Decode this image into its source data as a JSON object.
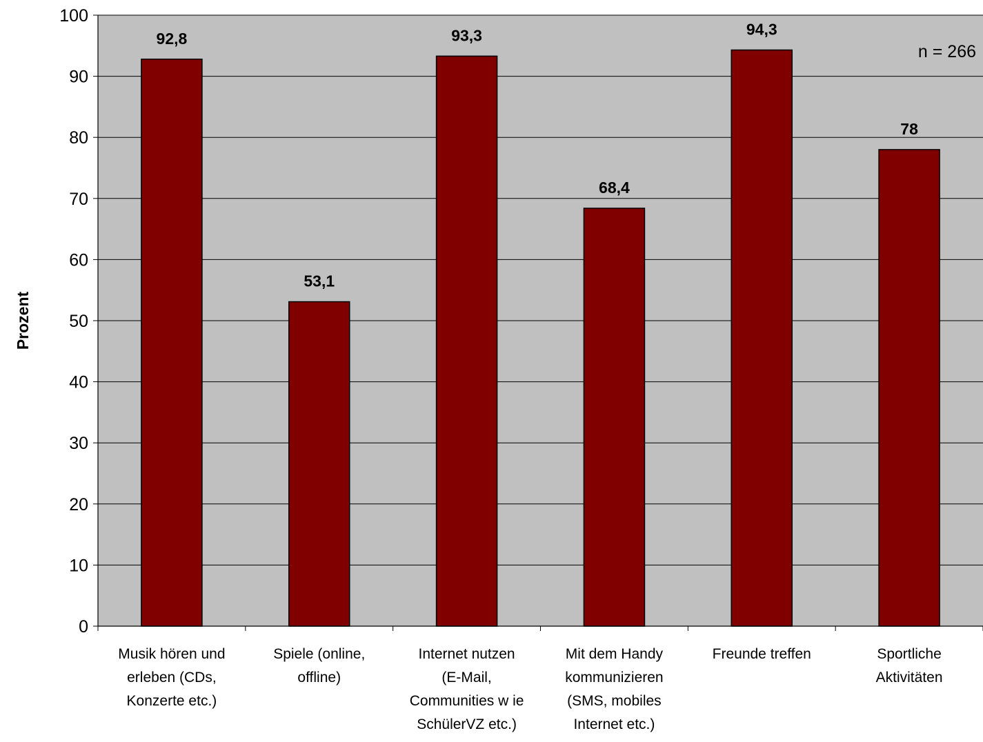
{
  "chart_data": {
    "type": "bar",
    "categories": [
      [
        "Musik hören und",
        "erleben (CDs,",
        "Konzerte etc.)"
      ],
      [
        "Spiele (online,",
        "offline)"
      ],
      [
        "Internet nutzen",
        "(E-Mail,",
        "Communities w ie",
        "SchülerVZ etc.)"
      ],
      [
        "Mit dem Handy",
        "kommunizieren",
        "(SMS, mobiles",
        "Internet etc.)"
      ],
      [
        "Freunde treffen"
      ],
      [
        "Sportliche",
        "Aktivitäten"
      ]
    ],
    "values": [
      92.8,
      53.1,
      93.3,
      68.4,
      94.3,
      78
    ],
    "data_labels": [
      "92,8",
      "53,1",
      "93,3",
      "68,4",
      "94,3",
      "78"
    ],
    "ylabel": "Prozent",
    "xlabel": "",
    "ylim": [
      0,
      100
    ],
    "yticks": [
      0,
      10,
      20,
      30,
      40,
      50,
      60,
      70,
      80,
      90,
      100
    ],
    "annotation": "n = 266",
    "grid": true,
    "colors": {
      "bar": "#800000",
      "plot_background": "#c0c0c0",
      "gridline": "#000000"
    }
  }
}
